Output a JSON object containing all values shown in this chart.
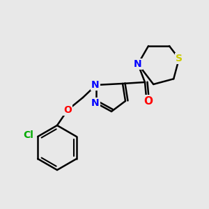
{
  "background_color": "#e8e8e8",
  "bond_color": "#000000",
  "atom_colors": {
    "N": "#0000ff",
    "O": "#ff0000",
    "S": "#cccc00",
    "Cl": "#00aa00",
    "C": "#000000"
  },
  "figsize": [
    3.0,
    3.0
  ],
  "dpi": 100
}
